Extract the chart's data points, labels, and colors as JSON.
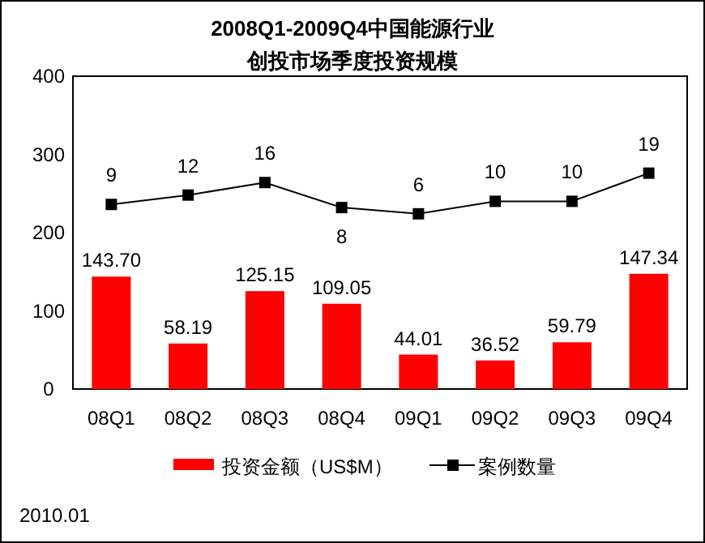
{
  "chart_data": {
    "type": "bar",
    "title": "2008Q1-2009Q4中国能源行业",
    "subtitle": "创投市场季度投资规模",
    "categories": [
      "08Q1",
      "08Q2",
      "08Q3",
      "08Q4",
      "09Q1",
      "09Q2",
      "09Q3",
      "09Q4"
    ],
    "series": [
      {
        "name": "投资金额（US$M）",
        "color": "#ff0000",
        "values": [
          143.7,
          58.19,
          125.15,
          109.05,
          44.01,
          36.52,
          59.79,
          147.34
        ],
        "value_labels": [
          "143.70",
          "58.19",
          "125.15",
          "109.05",
          "44.01",
          "36.52",
          "59.79",
          "147.34"
        ]
      },
      {
        "name": "案例数量",
        "type": "line",
        "axis": "y2",
        "color": "#000000",
        "marker": "square",
        "values": [
          9,
          12,
          16,
          8,
          6,
          10,
          10,
          19
        ],
        "value_labels": [
          "9",
          "12",
          "16",
          "8",
          "6",
          "10",
          "10",
          "19"
        ]
      }
    ],
    "ylim": [
      0,
      400
    ],
    "yticks": [
      0,
      100,
      200,
      300,
      400
    ],
    "y2lim": [
      -50,
      50
    ],
    "legend": "bottom",
    "grid": false,
    "annotations": [
      "2010.01"
    ]
  }
}
